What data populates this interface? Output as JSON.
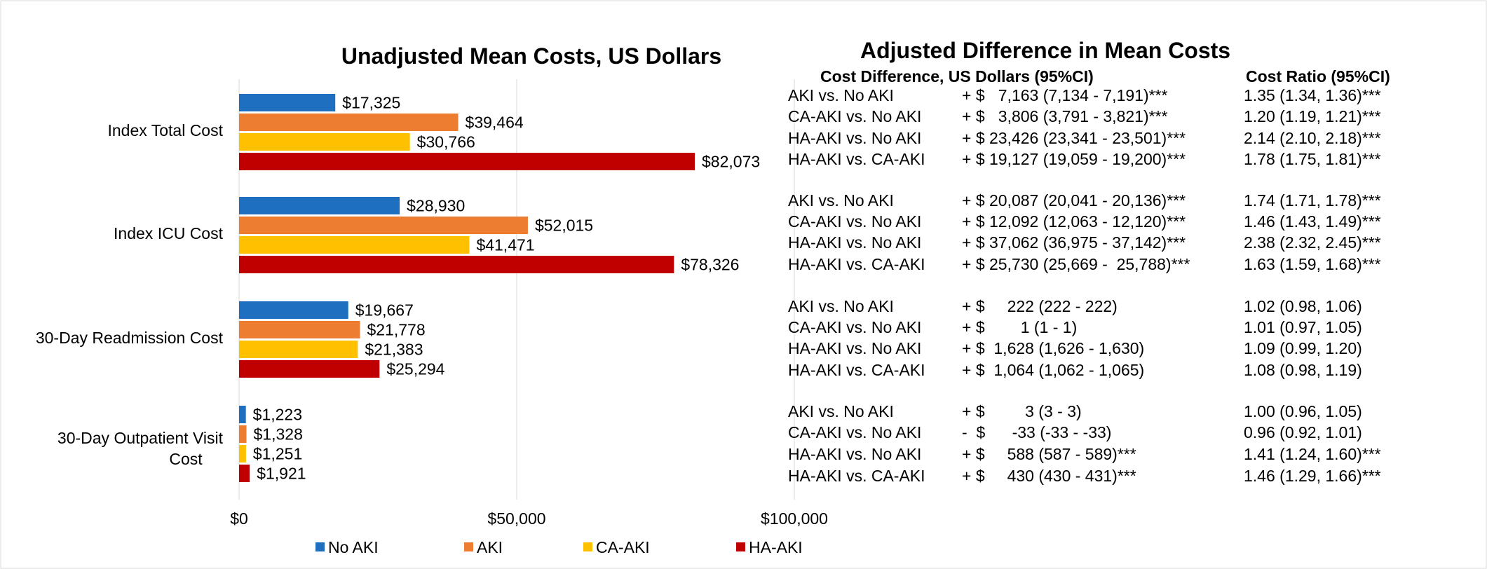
{
  "chart_data": {
    "type": "bar",
    "orientation": "horizontal",
    "title": "Unadjusted Mean Costs, US Dollars",
    "xlabel": "",
    "ylabel": "",
    "xlim": [
      0,
      100000
    ],
    "x_ticks": [
      "$0",
      "$50,000",
      "$100,000"
    ],
    "x_tick_values": [
      0,
      50000,
      100000
    ],
    "grid": true,
    "legend_position": "bottom",
    "categories": [
      "Index Total Cost",
      "Index ICU Cost",
      "30-Day Readmission Cost",
      "30-Day Outpatient Visit Cost"
    ],
    "series": [
      {
        "name": "No AKI",
        "color": "#1f6fc0",
        "values": [
          17325,
          28930,
          19667,
          1223
        ],
        "labels": [
          "$17,325",
          "$28,930",
          "$19,667",
          "$1,223"
        ]
      },
      {
        "name": "AKI",
        "color": "#ed7d31",
        "values": [
          39464,
          52015,
          21778,
          1328
        ],
        "labels": [
          "$39,464",
          "$52,015",
          "$21,778",
          "$1,328"
        ]
      },
      {
        "name": "CA-AKI",
        "color": "#ffc000",
        "values": [
          30766,
          41471,
          21383,
          1251
        ],
        "labels": [
          "$30,766",
          "$41,471",
          "$21,383",
          "$1,251"
        ]
      },
      {
        "name": "HA-AKI",
        "color": "#c00000",
        "values": [
          82073,
          78326,
          25294,
          1921
        ],
        "labels": [
          "$82,073",
          "$78,326",
          "$25,294",
          "$1,921"
        ]
      }
    ]
  },
  "table": {
    "title": "Adjusted Difference in Mean Costs",
    "col_diff_header": "Cost Difference, US Dollars (95%CI)",
    "col_ratio_header": "Cost Ratio (95%CI)",
    "groups": [
      {
        "category": "Index Total Cost",
        "rows": [
          {
            "comparison": "AKI vs. No AKI",
            "diff": "+ $   7,163 (7,134 - 7,191)***",
            "ratio": "1.35 (1.34, 1.36)***"
          },
          {
            "comparison": "CA-AKI vs. No AKI",
            "diff": "+ $   3,806 (3,791 - 3,821)***",
            "ratio": "1.20 (1.19, 1.21)***"
          },
          {
            "comparison": "HA-AKI vs. No AKI",
            "diff": "+ $ 23,426 (23,341 - 23,501)***",
            "ratio": "2.14 (2.10, 2.18)***"
          },
          {
            "comparison": "HA-AKI vs. CA-AKI",
            "diff": "+ $ 19,127 (19,059 - 19,200)***",
            "ratio": "1.78 (1.75, 1.81)***"
          }
        ]
      },
      {
        "category": "Index ICU Cost",
        "rows": [
          {
            "comparison": "AKI vs. No AKI",
            "diff": "+ $ 20,087 (20,041 - 20,136)***",
            "ratio": "1.74 (1.71, 1.78)***"
          },
          {
            "comparison": "CA-AKI vs. No AKI",
            "diff": "+ $ 12,092 (12,063 - 12,120)***",
            "ratio": "1.46 (1.43, 1.49)***"
          },
          {
            "comparison": "HA-AKI vs. No AKI",
            "diff": "+ $ 37,062 (36,975 - 37,142)***",
            "ratio": "2.38 (2.32, 2.45)***"
          },
          {
            "comparison": "HA-AKI vs. CA-AKI",
            "diff": "+ $ 25,730 (25,669 -  25,788)***",
            "ratio": "1.63 (1.59, 1.68)***"
          }
        ]
      },
      {
        "category": "30-Day Readmission Cost",
        "rows": [
          {
            "comparison": "AKI vs. No AKI",
            "diff": "+ $     222 (222 - 222)",
            "ratio": "1.02 (0.98, 1.06)"
          },
          {
            "comparison": "CA-AKI vs. No AKI",
            "diff": "+ $        1 (1 - 1)",
            "ratio": "1.01 (0.97, 1.05)"
          },
          {
            "comparison": "HA-AKI vs. No AKI",
            "diff": "+ $  1,628 (1,626 - 1,630)",
            "ratio": "1.09 (0.99, 1.20)"
          },
          {
            "comparison": "HA-AKI vs. CA-AKI",
            "diff": "+ $  1,064 (1,062 - 1,065)",
            "ratio": "1.08 (0.98, 1.19)"
          }
        ]
      },
      {
        "category": "30-Day Outpatient Visit Cost",
        "rows": [
          {
            "comparison": "AKI vs. No AKI",
            "diff": "+ $         3 (3 - 3)",
            "ratio": "1.00 (0.96, 1.05)"
          },
          {
            "comparison": "CA-AKI vs. No AKI",
            "diff": "-  $      -33 (-33 - -33)",
            "ratio": "0.96 (0.92, 1.01)"
          },
          {
            "comparison": "HA-AKI vs. No AKI",
            "diff": "+ $     588 (587 - 589)***",
            "ratio": "1.41 (1.24, 1.60)***"
          },
          {
            "comparison": "HA-AKI vs. CA-AKI",
            "diff": "+ $     430 (430 - 431)***",
            "ratio": "1.46 (1.29, 1.66)***"
          }
        ]
      }
    ]
  }
}
